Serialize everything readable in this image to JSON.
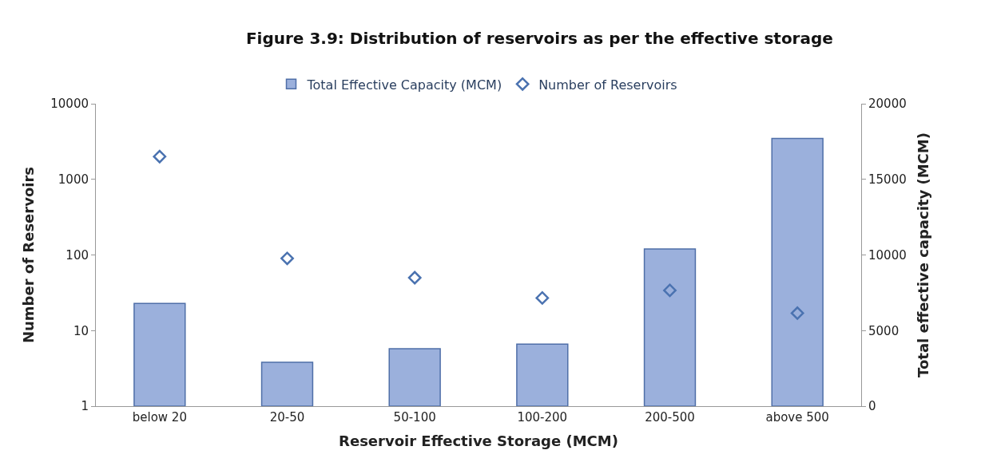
{
  "chart_data": {
    "type": "bar",
    "title": "Figure 3.9: Distribution of reservoirs as per the effective storage",
    "xlabel": "Reservoir Effective Storage (MCM)",
    "ylabel": "Number of Reservoirs",
    "y2label": "Total effective capacity (MCM)",
    "categories": [
      "below 20",
      "20-50",
      "50-100",
      "100-200",
      "200-500",
      "above 500"
    ],
    "series": [
      {
        "name": "Total Effective Capacity (MCM)",
        "axis": "y2",
        "color": "#9bb0dc",
        "values": [
          6800,
          2900,
          3800,
          4100,
          10400,
          17700
        ]
      },
      {
        "name": "Number of Reservoirs",
        "type": "scatter",
        "marker": "diamond",
        "color": "#4a72b0",
        "values": [
          2000,
          90,
          50,
          27,
          34,
          17
        ]
      }
    ],
    "log": "y",
    "ylim": [
      1,
      10000
    ],
    "yticks": [
      1,
      10,
      100,
      1000,
      10000
    ],
    "y2lim": [
      0,
      20000
    ],
    "y2ticks": [
      0,
      5000,
      10000,
      15000,
      20000
    ],
    "legend": "top"
  }
}
